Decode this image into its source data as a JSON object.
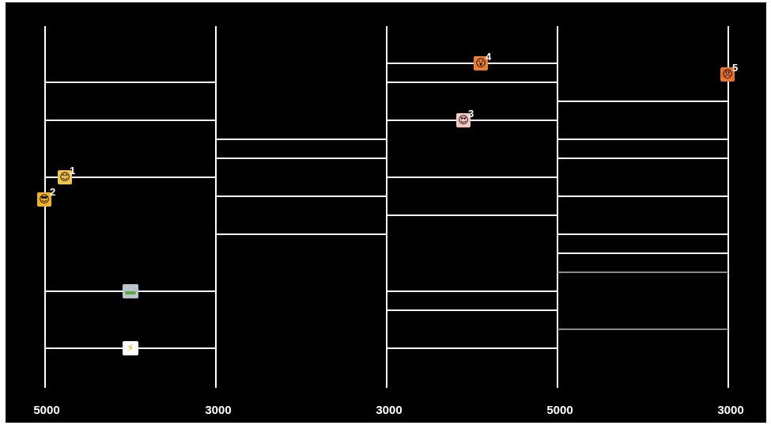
{
  "game": {
    "bottom_labels": [
      "5000",
      "3000",
      "3000",
      "5000",
      "3000"
    ],
    "players": [
      {
        "number": "1",
        "icon": "smiling-face-icon",
        "glyph": "😊",
        "color": "#f4c542"
      },
      {
        "number": "2",
        "icon": "sunglasses-face-icon",
        "glyph": "😎",
        "color": "#f2b21b"
      },
      {
        "number": "3",
        "icon": "heart-eyes-face-icon",
        "glyph": "😍",
        "color": "#f5c7c0"
      },
      {
        "number": "4",
        "icon": "surprised-face-icon",
        "glyph": "😮",
        "color": "#f07f2a"
      },
      {
        "number": "5",
        "icon": "angry-face-icon",
        "glyph": "😠",
        "color": "#e8732b"
      }
    ],
    "items": [
      {
        "icon": "battery-icon",
        "glyph": "▬",
        "color": "#b8c6cc"
      },
      {
        "icon": "lightning-icon",
        "glyph": "⚡",
        "color": "#ffffff"
      }
    ]
  }
}
